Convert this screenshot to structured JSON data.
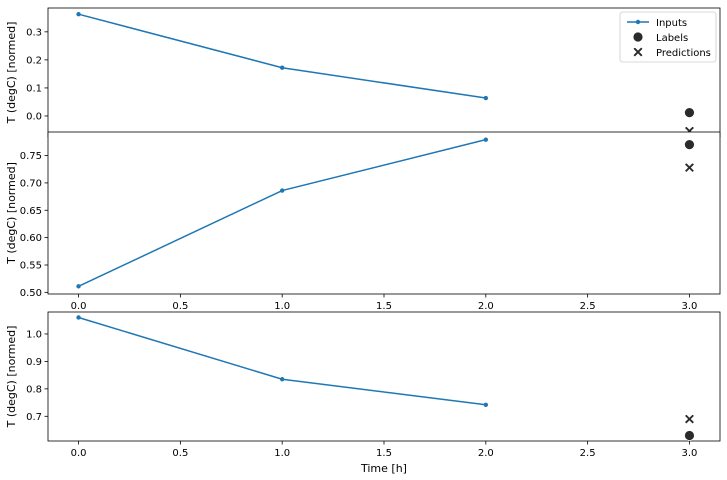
{
  "figure": {
    "xlabel": "Time [h]",
    "legend": {
      "placement": "upper right",
      "entries": [
        {
          "label": "Inputs",
          "marker": "line-dot",
          "color": "#1f77b4"
        },
        {
          "label": "Labels",
          "marker": "circle",
          "color": "#2b2b2b"
        },
        {
          "label": "Predictions",
          "marker": "x",
          "color": "#2b2b2b"
        }
      ]
    },
    "colors": {
      "inputs": "#1f77b4",
      "labels": "#2b2b2b",
      "predictions": "#2b2b2b",
      "predictions_edge": "#ffffff"
    }
  },
  "chart_data": [
    {
      "type": "line",
      "ylabel": "T (degC) [normed]",
      "xlim": [
        -0.15,
        3.15
      ],
      "ylim": [
        -0.075,
        0.385
      ],
      "xticks": [
        "0.0",
        "0.5",
        "1.0",
        "1.5",
        "2.0",
        "2.5",
        "3.0"
      ],
      "yticks": [
        "0.0",
        "0.1",
        "0.2",
        "0.3"
      ],
      "show_legend": true,
      "inputs": {
        "x": [
          0,
          1,
          2
        ],
        "y": [
          0.363,
          0.172,
          0.064
        ]
      },
      "labels": {
        "x": [
          3
        ],
        "y": [
          0.012
        ]
      },
      "predictions": {
        "x": [
          3
        ],
        "y": [
          -0.054
        ]
      }
    },
    {
      "type": "line",
      "ylabel": "T (degC) [normed]",
      "xlim": [
        -0.15,
        3.15
      ],
      "ylim": [
        0.497,
        0.793
      ],
      "xticks": [
        "0.0",
        "0.5",
        "1.0",
        "1.5",
        "2.0",
        "2.5",
        "3.0"
      ],
      "yticks": [
        "0.50",
        "0.55",
        "0.60",
        "0.65",
        "0.70",
        "0.75"
      ],
      "show_legend": false,
      "inputs": {
        "x": [
          0,
          1,
          2
        ],
        "y": [
          0.511,
          0.686,
          0.779
        ]
      },
      "labels": {
        "x": [
          3
        ],
        "y": [
          0.77
        ]
      },
      "predictions": {
        "x": [
          3
        ],
        "y": [
          0.728
        ]
      }
    },
    {
      "type": "line",
      "ylabel": "T (degC) [normed]",
      "xlim": [
        -0.15,
        3.15
      ],
      "ylim": [
        0.61,
        1.08
      ],
      "xticks": [
        "0.0",
        "0.5",
        "1.0",
        "1.5",
        "2.0",
        "2.5",
        "3.0"
      ],
      "yticks": [
        "0.7",
        "0.8",
        "0.9",
        "1.0"
      ],
      "show_legend": false,
      "inputs": {
        "x": [
          0,
          1,
          2
        ],
        "y": [
          1.06,
          0.835,
          0.742
        ]
      },
      "labels": {
        "x": [
          3
        ],
        "y": [
          0.63
        ]
      },
      "predictions": {
        "x": [
          3
        ],
        "y": [
          0.69
        ]
      }
    }
  ]
}
